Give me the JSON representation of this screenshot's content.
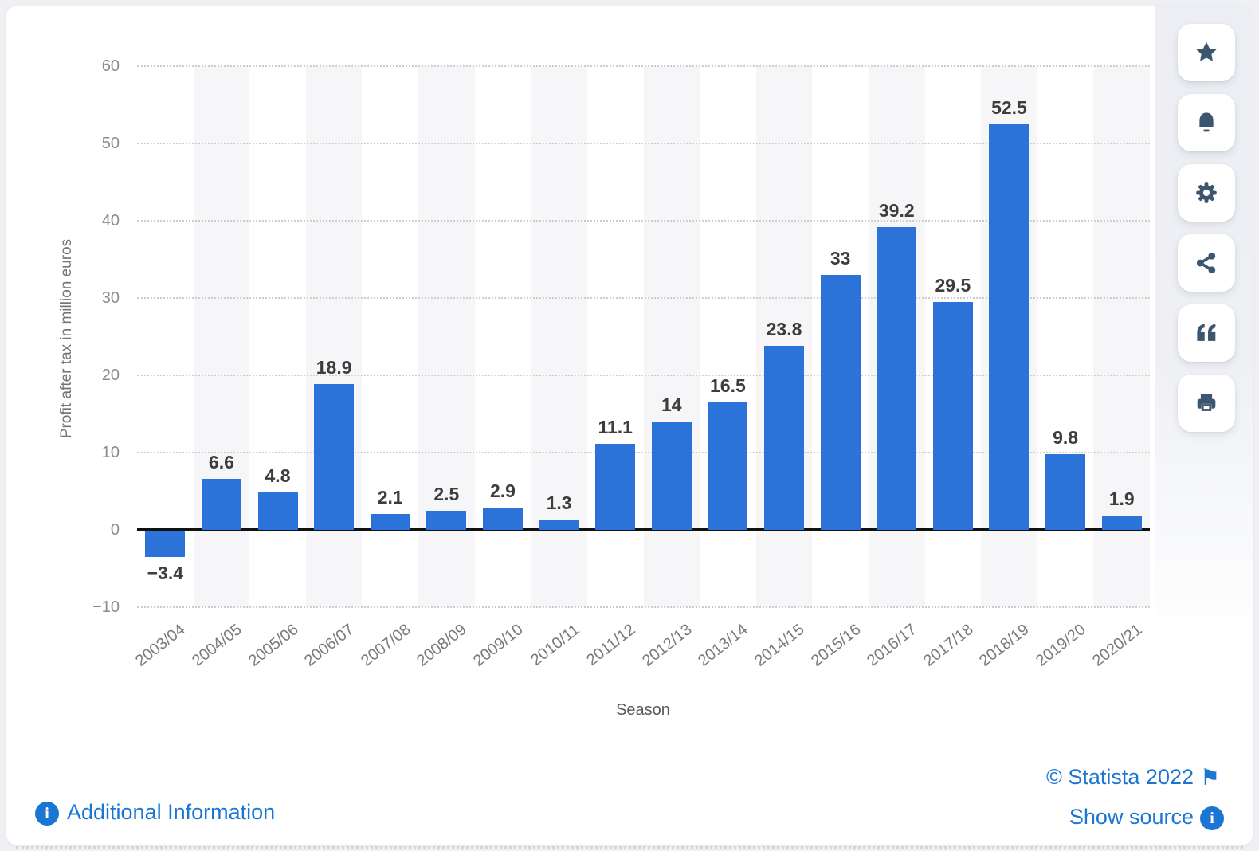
{
  "chart_data": {
    "type": "bar",
    "title": "",
    "xlabel": "Season",
    "ylabel": "Profit after tax in million euros",
    "ylim": [
      -10,
      60
    ],
    "yticks": [
      60,
      50,
      40,
      30,
      20,
      10,
      0,
      -10
    ],
    "grid": "horizontal-dotted",
    "legend": "none",
    "bar_color": "#2b72d9",
    "stripe_color": "#f6f6f9",
    "categories": [
      "2003/04",
      "2004/05",
      "2005/06",
      "2006/07",
      "2007/08",
      "2008/09",
      "2009/10",
      "2010/11",
      "2011/12",
      "2012/13",
      "2013/14",
      "2014/15",
      "2015/16",
      "2016/17",
      "2017/18",
      "2018/19",
      "2019/20",
      "2020/21"
    ],
    "values": [
      -3.4,
      6.6,
      4.8,
      18.9,
      2.1,
      2.5,
      2.9,
      1.3,
      11.1,
      14,
      16.5,
      23.8,
      33,
      39.2,
      29.5,
      52.5,
      9.8,
      1.9
    ],
    "value_labels": [
      "−3.4",
      "6.6",
      "4.8",
      "18.9",
      "2.1",
      "2.5",
      "2.9",
      "1.3",
      "11.1",
      "14",
      "16.5",
      "23.8",
      "33",
      "39.2",
      "29.5",
      "52.5",
      "9.8",
      "1.9"
    ]
  },
  "toolbar": {
    "items": [
      {
        "name": "favorite",
        "icon": "star-icon"
      },
      {
        "name": "alerts",
        "icon": "bell-icon"
      },
      {
        "name": "settings",
        "icon": "gear-icon"
      },
      {
        "name": "share",
        "icon": "share-icon"
      },
      {
        "name": "cite",
        "icon": "quote-icon"
      },
      {
        "name": "print",
        "icon": "printer-icon"
      }
    ],
    "icon_color": "#3d566f"
  },
  "footer": {
    "additional_info_label": "Additional Information",
    "copyright": "© Statista 2022",
    "show_source_label": "Show source",
    "info_glyph": "i",
    "flag_glyph": "⚑",
    "link_color": "#1a76d2"
  }
}
